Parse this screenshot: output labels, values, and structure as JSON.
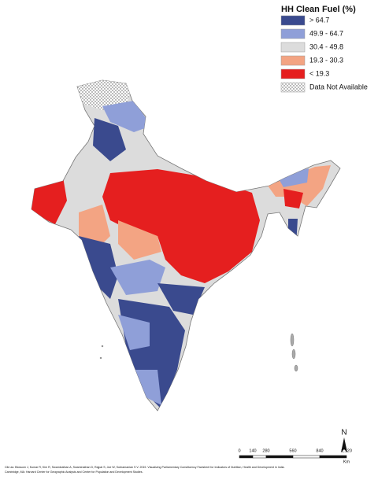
{
  "legend": {
    "title": "HH Clean Fuel (%)",
    "items": [
      {
        "label": "> 64.7",
        "color": "#3a4a8e"
      },
      {
        "label": "49.9 - 64.7",
        "color": "#8f9fd8"
      },
      {
        "label": "30.4 - 49.8",
        "color": "#dcdcdc"
      },
      {
        "label": "19.3 - 30.3",
        "color": "#f3a483"
      },
      {
        "label": "< 19.3",
        "color": "#e51f1f"
      },
      {
        "label": "Data Not Available",
        "color": "hatch"
      }
    ]
  },
  "north": "N",
  "scale_bar": {
    "ticks": [
      0,
      140,
      280,
      560,
      840,
      {
        "value": 1120,
        "label": "1,120"
      }
    ],
    "unit": "Km"
  },
  "citation": [
    "Cite as: Blossom J, Kumar R, Kim R, Swaminathan A, Swaminathan D, Rajpal S, Joe W, Subramanian S V. 2019. Visualizing Parliamentary Constituency Factsheet for Indicators of Nutrition, Health and Development in India.",
    "Cambridge, MA: Harvard Center for Geographic Analysis and Center for Population and Development Studies."
  ]
}
